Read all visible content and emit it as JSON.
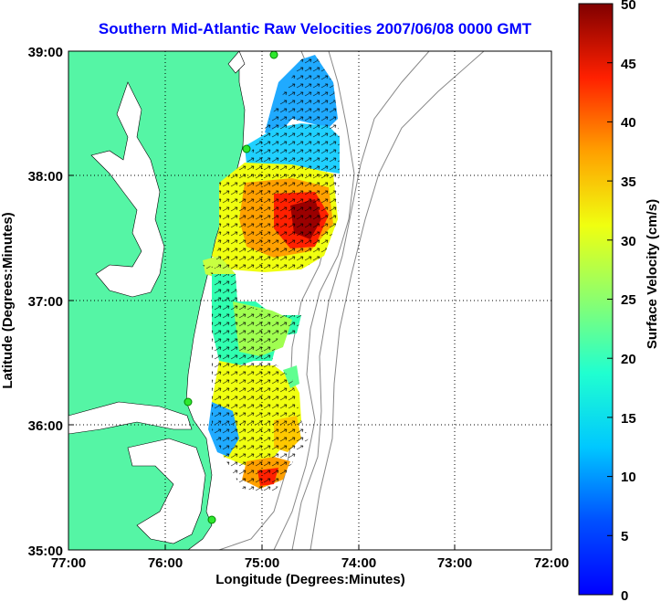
{
  "title": "Southern Mid-Atlantic Raw Velocities 2007/06/08 0000 GMT",
  "map": {
    "xlabel": "Longitude (Degrees:Minutes)",
    "ylabel": "Latitude (Degrees:Minutes)",
    "x_ticks": [
      "77:00",
      "76:00",
      "75:00",
      "74:00",
      "73:00",
      "72:00"
    ],
    "y_ticks": [
      "39:00",
      "38:00",
      "37:00",
      "36:00",
      "35:00"
    ],
    "land_color": "#55f5a5",
    "grid": "dotted"
  },
  "colorbar": {
    "label": "Surface Velocity (cm/s)",
    "ticks": [
      "50",
      "45",
      "40",
      "35",
      "30",
      "25",
      "20",
      "15",
      "10",
      "5",
      "0"
    ],
    "min": 0,
    "max": 50,
    "colormap": "jet"
  }
}
